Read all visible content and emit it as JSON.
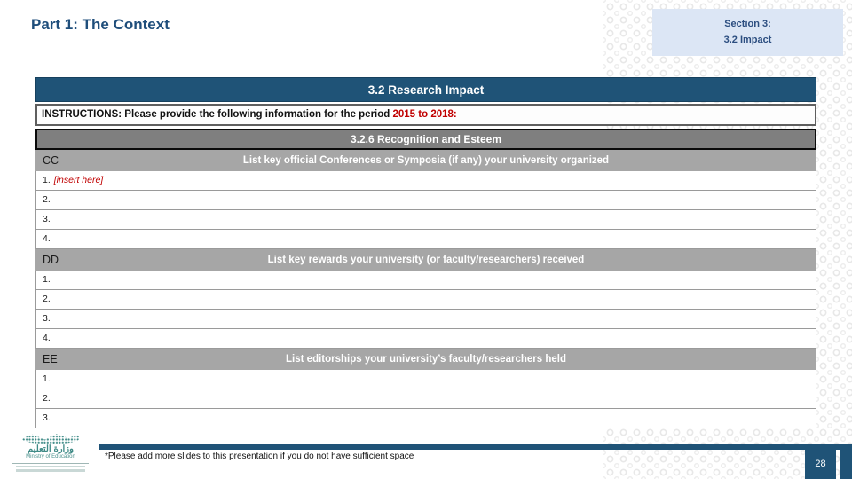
{
  "slide": {
    "title": "Part 1: The Context",
    "section_box": {
      "line1": "Section 3:",
      "line2": "3.2 Impact"
    },
    "footnote": "*Please add more slides to this presentation if you do not have sufficient space",
    "page_number": "28"
  },
  "table": {
    "header": "3.2 Research Impact",
    "instructions_prefix": "INSTRUCTIONS: Please provide the following information for the period ",
    "instructions_period": "2015 to 2018:",
    "subheader": "3.2.6 Recognition and Esteem",
    "sections": [
      {
        "code": "CC",
        "label": "List key official Conferences or Symposia (if any) your university organized",
        "items": [
          {
            "num": "1.",
            "placeholder": "[insert here]"
          },
          {
            "num": "2.",
            "placeholder": ""
          },
          {
            "num": "3.",
            "placeholder": ""
          },
          {
            "num": "4.",
            "placeholder": ""
          }
        ]
      },
      {
        "code": "DD",
        "label": "List key rewards your university (or faculty/researchers) received",
        "items": [
          {
            "num": "1.",
            "placeholder": ""
          },
          {
            "num": "2.",
            "placeholder": ""
          },
          {
            "num": "3.",
            "placeholder": ""
          },
          {
            "num": "4.",
            "placeholder": ""
          }
        ]
      },
      {
        "code": "EE",
        "label": "List editorships your university’s faculty/researchers held",
        "items": [
          {
            "num": "1.",
            "placeholder": ""
          },
          {
            "num": "2.",
            "placeholder": ""
          },
          {
            "num": "3.",
            "placeholder": ""
          }
        ]
      }
    ]
  },
  "logo": {
    "arabic": "وزارة التعليم",
    "english": "Ministry of Education"
  },
  "colors": {
    "accent_navy": "#1F5377",
    "alert_red": "#C00000",
    "section_box_bg": "#DCE6F5",
    "subheader_gray": "#7F7F7F",
    "section_row_gray": "#A6A6A6",
    "logo_teal": "#3E8A86"
  }
}
